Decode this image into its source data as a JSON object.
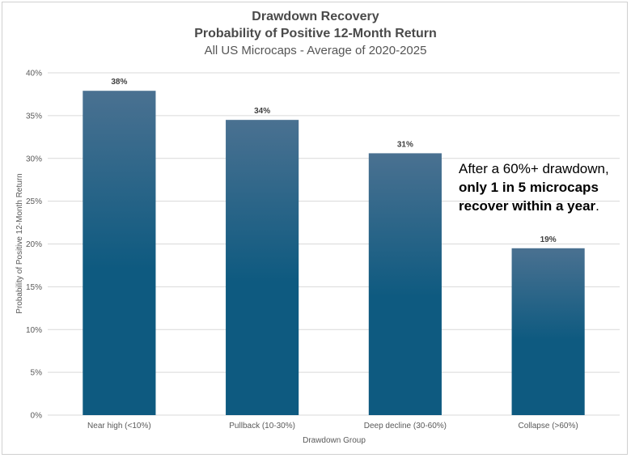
{
  "chart_data": {
    "type": "bar",
    "title": "Drawdown Recovery",
    "subtitle_bold": "Probability of Positive 12-Month Return",
    "subtitle": "All US Microcaps - Average of 2020-2025",
    "categories": [
      "Near high (<10%)",
      "Pullback (10-30%)",
      "Deep decline (30-60%)",
      "Collapse (>60%)"
    ],
    "values": [
      37.9,
      34.5,
      30.6,
      19.5
    ],
    "data_labels": [
      "38%",
      "34%",
      "31%",
      "19%"
    ],
    "xlabel": "Drawdown Group",
    "ylabel": "Probability of Positive 12-Month Return",
    "ylim": [
      0,
      40
    ],
    "yticks": [
      0,
      5,
      10,
      15,
      20,
      25,
      30,
      35,
      40
    ],
    "ytick_labels": [
      "0%",
      "5%",
      "10%",
      "15%",
      "20%",
      "25%",
      "30%",
      "35%",
      "40%"
    ],
    "grid": true,
    "colors": {
      "bar_top": "#4a7191",
      "bar_bottom": "#0e5a80",
      "grid": "#d9d9d9"
    }
  },
  "annotation": {
    "line1": "After a 60%+ drawdown,",
    "line2": "only 1 in 5 microcaps",
    "line3_bold": "recover within a year",
    "line3_end": "."
  }
}
